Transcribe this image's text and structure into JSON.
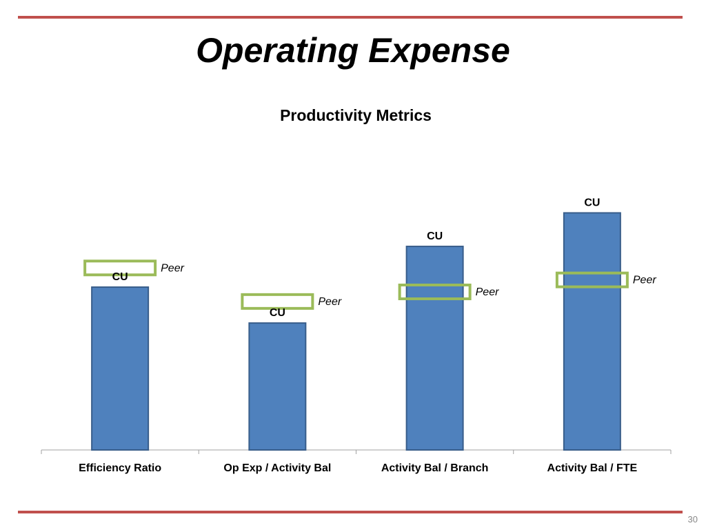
{
  "slide": {
    "title": "Operating Expense",
    "page_number": "30"
  },
  "colors": {
    "accent_rule": "#c0504d",
    "bar_fill": "#4f81bd",
    "bar_stroke": "#385d8a",
    "peer_marker": "#9bbb59",
    "axis": "#a0a0a0"
  },
  "chart_data": {
    "type": "bar",
    "title": "Productivity Metrics",
    "categories": [
      "Efficiency Ratio",
      "Op Exp / Activity Bal",
      "Activity Bal / Branch",
      "Activity Bal / FTE"
    ],
    "ylim": [
      0,
      100
    ],
    "grid": false,
    "series": [
      {
        "name": "CU",
        "values": [
          68,
          53,
          85,
          99
        ]
      },
      {
        "name": "Peer",
        "values": [
          76,
          62,
          66,
          71
        ]
      }
    ],
    "data_labels": {
      "cu": [
        "CU",
        "CU",
        "CU",
        "CU"
      ],
      "peer": [
        "Peer",
        "Peer",
        "Peer",
        "Peer"
      ]
    }
  }
}
